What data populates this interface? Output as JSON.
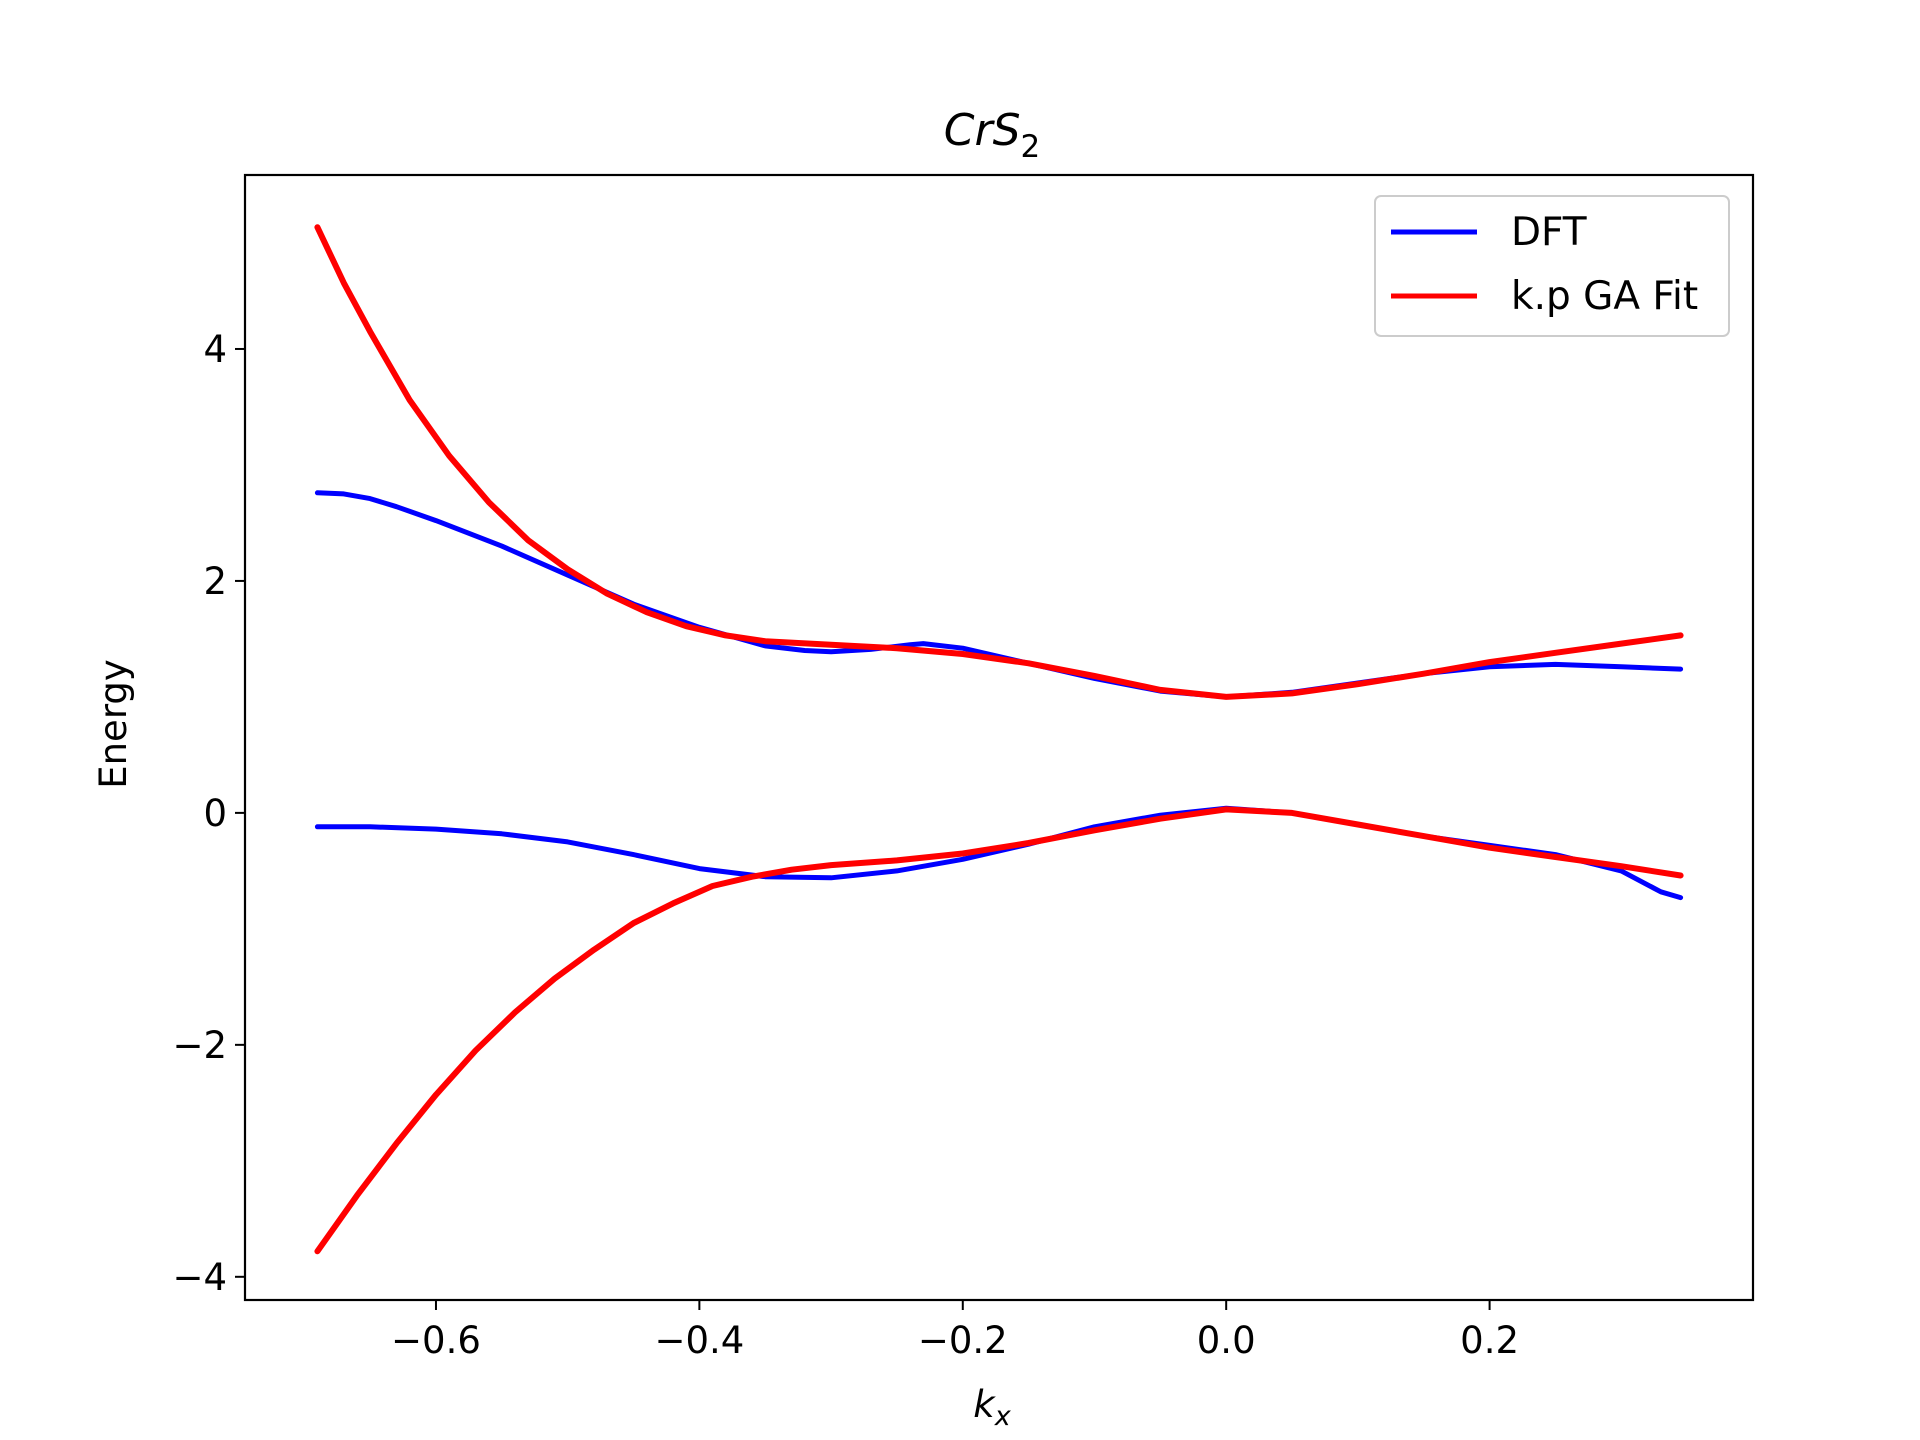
{
  "chart_data": {
    "type": "line",
    "title": "CrS",
    "title_subscript": "2",
    "xlabel": "k",
    "xlabel_subscript": "x",
    "ylabel": "Energy",
    "xlim": [
      -0.745,
      0.4
    ],
    "ylim": [
      -4.2,
      5.5
    ],
    "xticks": [
      -0.6,
      -0.4,
      -0.2,
      0.0,
      0.2
    ],
    "xtick_labels": [
      "−0.6",
      "−0.4",
      "−0.2",
      "0.0",
      "0.2"
    ],
    "yticks": [
      -4,
      -2,
      0,
      2,
      4
    ],
    "ytick_labels": [
      "−4",
      "−2",
      "0",
      "2",
      "4"
    ],
    "grid": false,
    "legend_position": "top-right",
    "colors": {
      "DFT": "#0000ff",
      "k.p GA Fit": "#ff0000"
    },
    "series": [
      {
        "name": "DFT",
        "color": "#0000ff",
        "x": [
          -0.69,
          -0.67,
          -0.65,
          -0.63,
          -0.6,
          -0.55,
          -0.5,
          -0.45,
          -0.4,
          -0.35,
          -0.32,
          -0.3,
          -0.27,
          -0.24,
          -0.23,
          -0.2,
          -0.15,
          -0.1,
          -0.05,
          0.0,
          0.05,
          0.1,
          0.15,
          0.2,
          0.25,
          0.3,
          0.345
        ],
        "y": [
          2.76,
          2.75,
          2.71,
          2.64,
          2.52,
          2.3,
          2.05,
          1.8,
          1.6,
          1.44,
          1.4,
          1.39,
          1.41,
          1.45,
          1.46,
          1.42,
          1.29,
          1.16,
          1.05,
          1.0,
          1.04,
          1.12,
          1.2,
          1.26,
          1.28,
          1.26,
          1.24
        ]
      },
      {
        "name": "DFT",
        "color": "#0000ff",
        "x": [
          -0.69,
          -0.65,
          -0.6,
          -0.55,
          -0.5,
          -0.45,
          -0.4,
          -0.35,
          -0.3,
          -0.25,
          -0.2,
          -0.15,
          -0.1,
          -0.05,
          0.0,
          0.05,
          0.1,
          0.15,
          0.2,
          0.25,
          0.3,
          0.33,
          0.345
        ],
        "y": [
          -0.12,
          -0.12,
          -0.14,
          -0.18,
          -0.25,
          -0.36,
          -0.48,
          -0.55,
          -0.56,
          -0.5,
          -0.4,
          -0.27,
          -0.12,
          -0.02,
          0.04,
          0.0,
          -0.1,
          -0.2,
          -0.28,
          -0.36,
          -0.5,
          -0.68,
          -0.73
        ]
      },
      {
        "name": "k.p GA Fit",
        "color": "#ff0000",
        "x": [
          -0.69,
          -0.67,
          -0.65,
          -0.62,
          -0.59,
          -0.56,
          -0.53,
          -0.5,
          -0.47,
          -0.44,
          -0.41,
          -0.38,
          -0.35,
          -0.3,
          -0.25,
          -0.2,
          -0.15,
          -0.1,
          -0.05,
          0.0,
          0.05,
          0.1,
          0.15,
          0.2,
          0.25,
          0.3,
          0.345
        ],
        "y": [
          5.05,
          4.57,
          4.15,
          3.56,
          3.08,
          2.68,
          2.35,
          2.1,
          1.89,
          1.73,
          1.61,
          1.53,
          1.48,
          1.45,
          1.42,
          1.37,
          1.29,
          1.18,
          1.06,
          1.0,
          1.03,
          1.11,
          1.2,
          1.3,
          1.38,
          1.46,
          1.53
        ]
      },
      {
        "name": "k.p GA Fit",
        "color": "#ff0000",
        "x": [
          -0.69,
          -0.66,
          -0.63,
          -0.6,
          -0.57,
          -0.54,
          -0.51,
          -0.48,
          -0.45,
          -0.42,
          -0.39,
          -0.36,
          -0.33,
          -0.3,
          -0.25,
          -0.2,
          -0.15,
          -0.1,
          -0.05,
          0.0,
          0.05,
          0.1,
          0.15,
          0.2,
          0.25,
          0.3,
          0.345
        ],
        "y": [
          -3.78,
          -3.3,
          -2.85,
          -2.43,
          -2.05,
          -1.72,
          -1.43,
          -1.18,
          -0.95,
          -0.78,
          -0.63,
          -0.55,
          -0.49,
          -0.45,
          -0.41,
          -0.35,
          -0.26,
          -0.15,
          -0.05,
          0.03,
          0.0,
          -0.1,
          -0.2,
          -0.3,
          -0.38,
          -0.46,
          -0.54
        ]
      }
    ]
  }
}
